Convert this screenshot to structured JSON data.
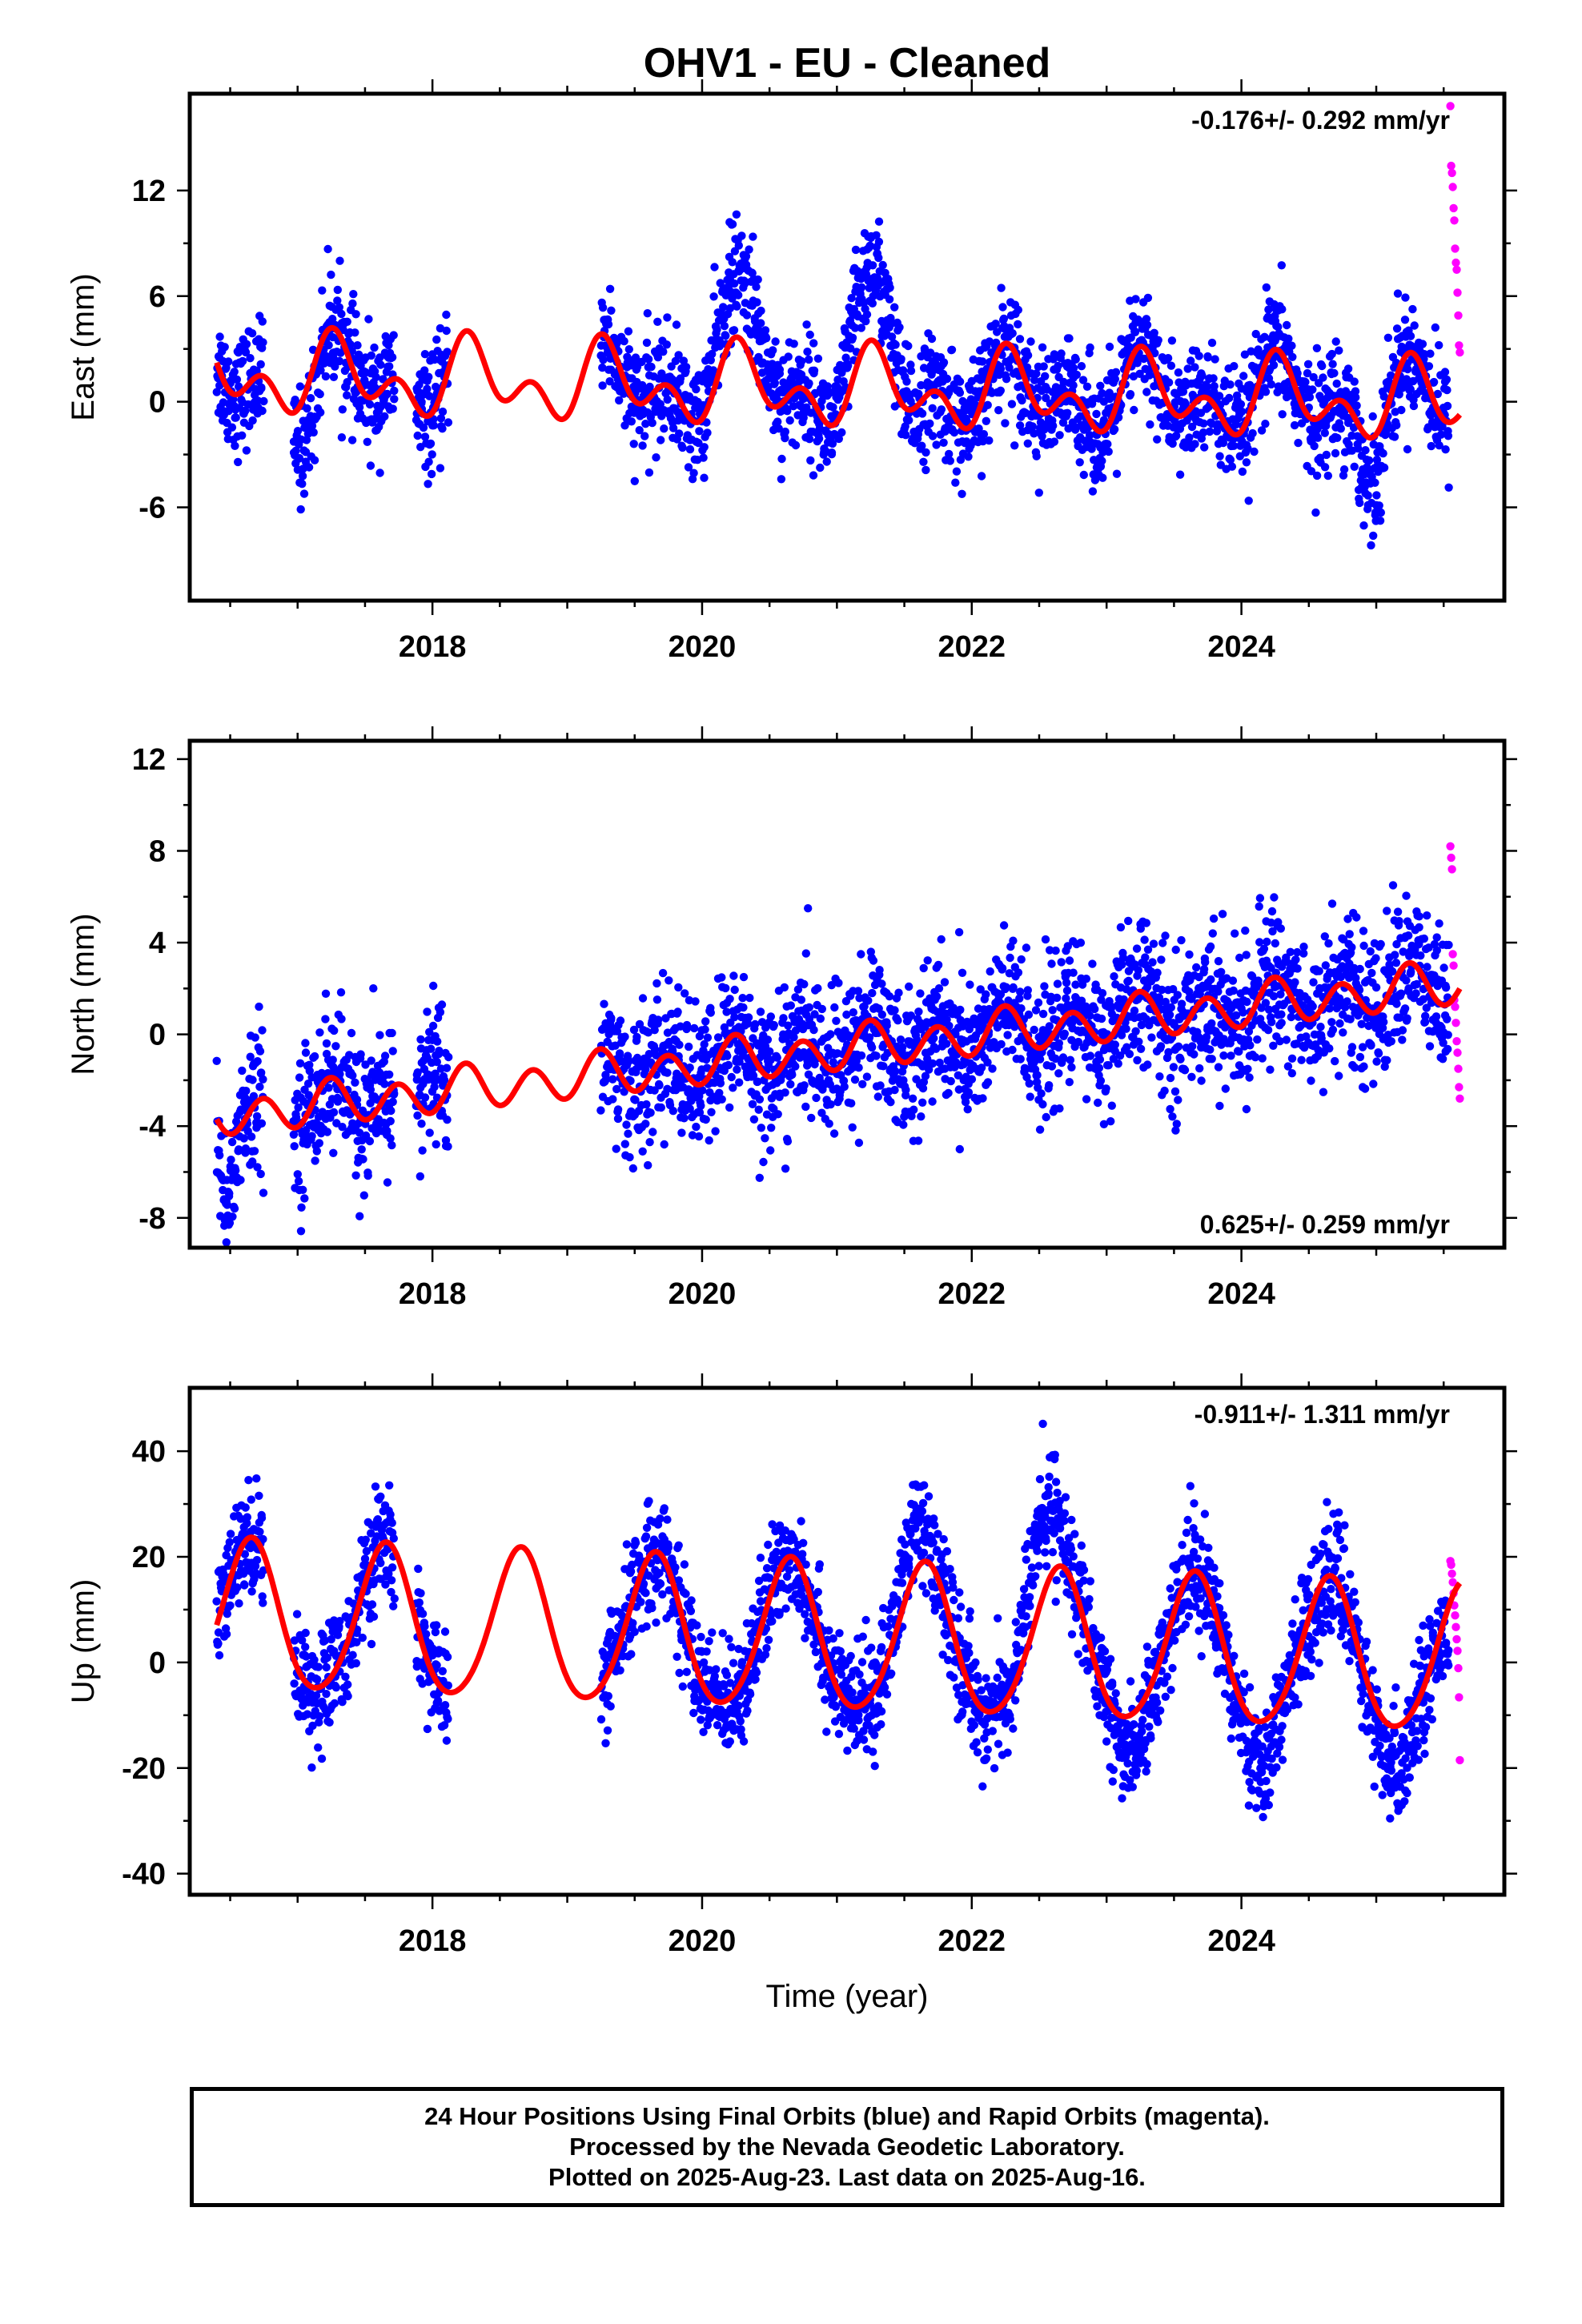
{
  "title": "OHV1  - EU - Cleaned",
  "colors": {
    "final_orbits": "#0000ff",
    "rapid_orbits": "#ff00ff",
    "model": "#ff0000"
  },
  "footer": {
    "lines": [
      "24 Hour Positions Using Final Orbits (blue) and Rapid Orbits (magenta).",
      "Processed by the Nevada Geodetic Laboratory.",
      "Plotted on 2025-Aug-23. Last data on 2025-Aug-16."
    ]
  },
  "chart_data": [
    {
      "type": "scatter",
      "ylabel": "East (mm)",
      "xlabel": "",
      "xlim": [
        2016.2,
        2025.95
      ],
      "ylim": [
        -11.3,
        17.5
      ],
      "xticks": [
        2018,
        2020,
        2022,
        2024
      ],
      "yticks": [
        -6,
        0,
        6,
        12
      ],
      "rate": "-0.176+/- 0.292 mm/yr",
      "rate_position": "top-right",
      "data_segments": [
        [
          2016.4,
          2016.75
        ],
        [
          2016.97,
          2017.72
        ],
        [
          2017.88,
          2018.12
        ],
        [
          2019.25,
          2025.54
        ]
      ],
      "seasonal_model": {
        "offset": 0.8,
        "trend": -0.176,
        "ref_year": 2020.5,
        "annual": 1.5,
        "annual_phase": 2017.05,
        "semiannual": 1.4,
        "semiannual_phase": 2017.12
      },
      "series": [
        {
          "name": "Final Orbits",
          "color": "#0000ff",
          "noise": 1.6,
          "seasonal_extra": [
            [
              2020.0,
              2020.6,
              3.5
            ],
            [
              2021.0,
              2021.5,
              4.0
            ],
            [
              2016.9,
              2017.2,
              -2.5
            ],
            [
              2024.85,
              2025.05,
              -3.0
            ]
          ]
        },
        {
          "name": "Rapid Orbits",
          "color": "#ff00ff",
          "x_range": [
            2025.55,
            2025.62
          ],
          "y_values": [
            16.8,
            13.4,
            13.0,
            12.2,
            11.0,
            10.3,
            8.7,
            7.9,
            7.5,
            6.2,
            4.9,
            3.2,
            2.8
          ]
        },
        {
          "name": "Model",
          "color": "#ff0000"
        }
      ]
    },
    {
      "type": "scatter",
      "ylabel": "North (mm)",
      "xlabel": "",
      "xlim": [
        2016.2,
        2025.95
      ],
      "ylim": [
        -9.3,
        12.8
      ],
      "xticks": [
        2018,
        2020,
        2022,
        2024
      ],
      "yticks": [
        -8,
        -4,
        0,
        4,
        8,
        12
      ],
      "rate": "0.625+/- 0.259 mm/yr",
      "rate_position": "bottom-right",
      "data_segments": [
        [
          2016.4,
          2016.75
        ],
        [
          2016.97,
          2017.72
        ],
        [
          2017.88,
          2018.12
        ],
        [
          2019.25,
          2025.54
        ]
      ],
      "seasonal_model": {
        "offset": 0.0,
        "trend": 0.625,
        "ref_year": 2022.1,
        "annual": 0.3,
        "annual_phase": 2017.0,
        "semiannual": 0.85,
        "semiannual_phase": 2016.62
      },
      "series": [
        {
          "name": "Final Orbits",
          "color": "#0000ff",
          "noise": 1.55,
          "seasonal_extra": [
            [
              2016.4,
              2016.55,
              -3.0
            ],
            [
              2017.9,
              2018.1,
              2.0
            ]
          ]
        },
        {
          "name": "Rapid Orbits",
          "color": "#ff00ff",
          "x_range": [
            2025.55,
            2025.62
          ],
          "y_values": [
            8.2,
            7.7,
            7.2,
            3.5,
            3.0,
            1.5,
            1.2,
            0.5,
            -0.3,
            -0.8,
            -1.5,
            -2.3,
            -2.8
          ]
        },
        {
          "name": "Model",
          "color": "#ff0000"
        }
      ]
    },
    {
      "type": "scatter",
      "ylabel": "Up (mm)",
      "xlabel": "Time (year)",
      "xlim": [
        2016.2,
        2025.95
      ],
      "ylim": [
        -44,
        52
      ],
      "xticks": [
        2018,
        2020,
        2022,
        2024
      ],
      "yticks": [
        -40,
        -20,
        0,
        20,
        40
      ],
      "rate": "-0.911+/- 1.311 mm/yr",
      "rate_position": "top-right",
      "data_segments": [
        [
          2016.4,
          2016.75
        ],
        [
          2016.97,
          2017.72
        ],
        [
          2017.88,
          2018.12
        ],
        [
          2019.25,
          2025.54
        ]
      ],
      "seasonal_model": {
        "offset": 4.3,
        "trend": -0.911,
        "ref_year": 2021.0,
        "annual": 14.0,
        "annual_phase": 2016.4,
        "semiannual": 1.5,
        "semiannual_phase": 2016.55
      },
      "series": [
        {
          "name": "Final Orbits",
          "color": "#0000ff",
          "noise": 5.2,
          "seasonal_extra": [
            [
              2021.4,
              2021.7,
              8.0
            ],
            [
              2022.3,
              2022.75,
              14.0
            ],
            [
              2023.0,
              2023.4,
              -6.0
            ],
            [
              2024.0,
              2024.3,
              -8.0
            ],
            [
              2024.9,
              2025.3,
              -8.0
            ]
          ]
        },
        {
          "name": "Rapid Orbits",
          "color": "#ff00ff",
          "x_range": [
            2025.55,
            2025.62
          ],
          "y_values": [
            19.2,
            18.5,
            16.8,
            15.2,
            13.1,
            10.8,
            8.9,
            6.7,
            4.4,
            2.2,
            -1.1,
            -6.6,
            -18.5
          ]
        },
        {
          "name": "Model",
          "color": "#ff0000"
        }
      ]
    }
  ]
}
